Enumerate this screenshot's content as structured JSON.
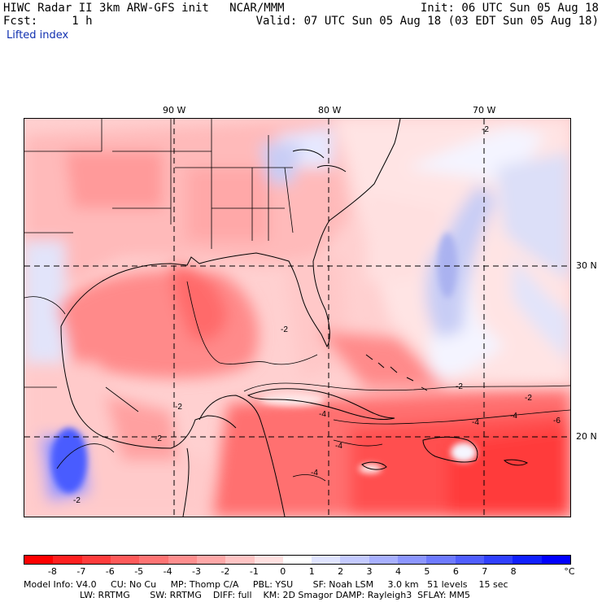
{
  "header": {
    "line1_left": "HIWC Radar II 3km ARW-GFS init   NCAR/MMM",
    "line1_right": "Init: 06 UTC Sun 05 Aug 18",
    "line2_left": "Fcst:     1 h",
    "line2_right": "Valid: 07 UTC Sun 05 Aug 18 (03 EDT Sun 05 Aug 18)",
    "field": "Lifted index"
  },
  "map": {
    "lon_labels": [
      "90 W",
      "80 W",
      "70 W"
    ],
    "lat_labels": [
      "30 N",
      "20 N"
    ],
    "contour_labels": [
      "-2",
      "-2",
      "-2",
      "-2",
      "-2",
      "-4",
      "-4",
      "-4",
      "-4",
      "-4",
      "-6",
      "-2",
      "-2"
    ]
  },
  "colorbar": {
    "ticks": [
      "-8",
      "-7",
      "-6",
      "-5",
      "-4",
      "-3",
      "-2",
      "-1",
      "0",
      "1",
      "2",
      "3",
      "4",
      "5",
      "6",
      "7",
      "8"
    ],
    "unit": "°C",
    "colors": [
      "#ff0000",
      "#ff2020",
      "#ff3c3c",
      "#ff5a5a",
      "#ff7474",
      "#ff8e8e",
      "#ffa8a8",
      "#ffc4c4",
      "#ffe0e0",
      "#ffffff",
      "#e0e4ff",
      "#c4caff",
      "#a8b0ff",
      "#8c96ff",
      "#6e7aff",
      "#505eff",
      "#3040ff",
      "#1020ff",
      "#0000ff"
    ]
  },
  "footer": {
    "line1": "Model Info: V4.0     CU: No Cu     MP: Thomp C/A     PBL: YSU       SF: Noah LSM     3.0 km   51 levels    15 sec",
    "line2": "LW: RRTMG       SW: RRTMG    DIFF: full    KM: 2D Smagor DAMP: Rayleigh3  SFLAY: MM5"
  }
}
